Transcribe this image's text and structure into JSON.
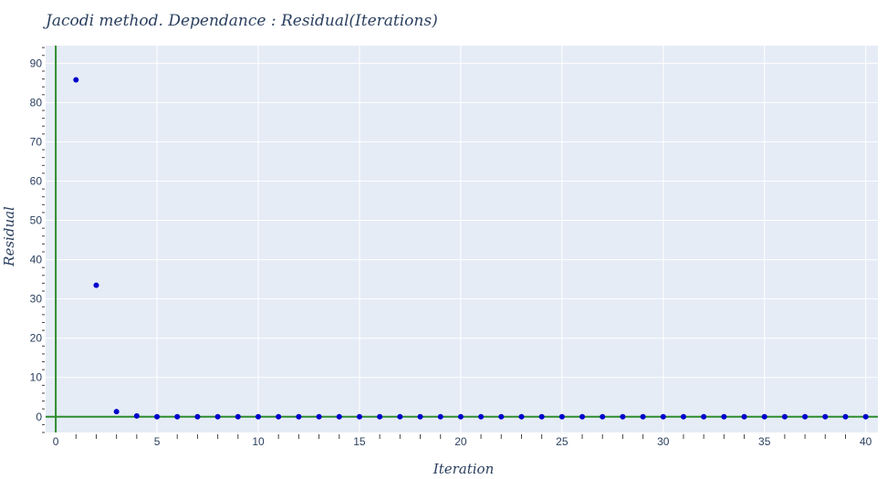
{
  "chart_data": {
    "type": "scatter",
    "title": "Jacodi method.  Dependance :  Residual(Iterations)",
    "xlabel": "Iteration",
    "ylabel": "Residual",
    "xlim": [
      -0.5,
      40.6
    ],
    "ylim": [
      -4,
      94.5
    ],
    "x_ticks": [
      0,
      5,
      10,
      15,
      20,
      25,
      30,
      35,
      40
    ],
    "y_ticks": [
      0,
      10,
      20,
      30,
      40,
      50,
      60,
      70,
      80,
      90
    ],
    "grid": true,
    "legend": "none",
    "colors": {
      "plot_bg": "#e5ecf6",
      "grid": "#ffffff",
      "marker": "#0000cc",
      "zero_line": "#2e8b2e",
      "tick_mark": "#444444",
      "text": "#2a3f5f"
    },
    "series": [
      {
        "x": [
          1,
          2,
          3,
          4,
          5,
          6,
          7,
          8,
          9,
          10,
          11,
          12,
          13,
          14,
          15,
          16,
          17,
          18,
          19,
          20,
          21,
          22,
          23,
          24,
          25,
          26,
          27,
          28,
          29,
          30,
          31,
          32,
          33,
          34,
          35,
          36,
          37,
          38,
          39,
          40
        ],
        "y": [
          85.8,
          33.5,
          1.3,
          0.2,
          0.02,
          0,
          0,
          0,
          0,
          0,
          0,
          0,
          0,
          0,
          0,
          0,
          0,
          0,
          0,
          0,
          0,
          0,
          0,
          0,
          0,
          0,
          0,
          0,
          0,
          0,
          0,
          0,
          0,
          0,
          0,
          0,
          0,
          0,
          0,
          0
        ]
      }
    ]
  }
}
